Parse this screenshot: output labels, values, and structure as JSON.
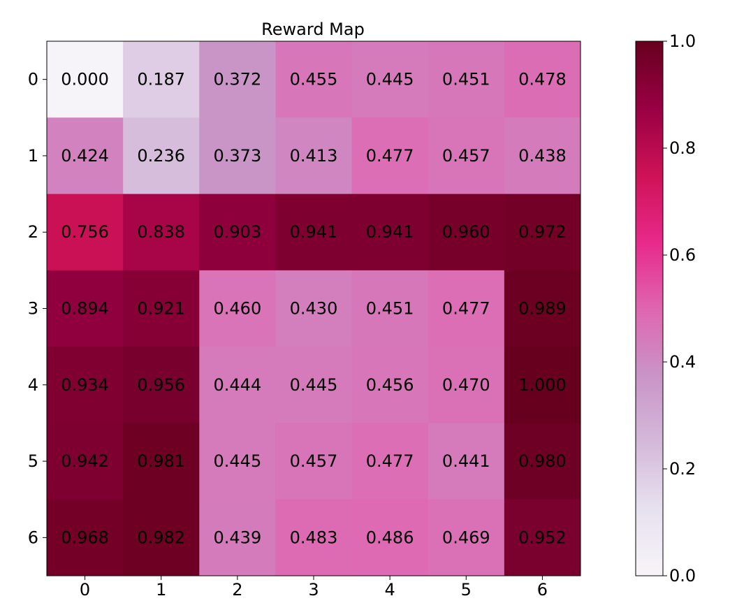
{
  "chart_data": {
    "type": "heatmap",
    "title": "Reward Map",
    "x_ticks": [
      "0",
      "1",
      "2",
      "3",
      "4",
      "5",
      "6"
    ],
    "y_ticks": [
      "0",
      "1",
      "2",
      "3",
      "4",
      "5",
      "6"
    ],
    "values": [
      [
        0.0,
        0.187,
        0.372,
        0.455,
        0.445,
        0.451,
        0.478
      ],
      [
        0.424,
        0.236,
        0.373,
        0.413,
        0.477,
        0.457,
        0.438
      ],
      [
        0.756,
        0.838,
        0.903,
        0.941,
        0.941,
        0.96,
        0.972
      ],
      [
        0.894,
        0.921,
        0.46,
        0.43,
        0.451,
        0.477,
        0.989
      ],
      [
        0.934,
        0.956,
        0.444,
        0.445,
        0.456,
        0.47,
        1.0
      ],
      [
        0.942,
        0.981,
        0.445,
        0.457,
        0.477,
        0.441,
        0.98
      ],
      [
        0.968,
        0.982,
        0.439,
        0.483,
        0.486,
        0.469,
        0.952
      ]
    ],
    "value_labels": [
      [
        "0.000",
        "0.187",
        "0.372",
        "0.455",
        "0.445",
        "0.451",
        "0.478"
      ],
      [
        "0.424",
        "0.236",
        "0.373",
        "0.413",
        "0.477",
        "0.457",
        "0.438"
      ],
      [
        "0.756",
        "0.838",
        "0.903",
        "0.941",
        "0.941",
        "0.960",
        "0.972"
      ],
      [
        "0.894",
        "0.921",
        "0.460",
        "0.430",
        "0.451",
        "0.477",
        "0.989"
      ],
      [
        "0.934",
        "0.956",
        "0.444",
        "0.445",
        "0.456",
        "0.470",
        "1.000"
      ],
      [
        "0.942",
        "0.981",
        "0.445",
        "0.457",
        "0.477",
        "0.441",
        "0.980"
      ],
      [
        "0.968",
        "0.982",
        "0.439",
        "0.483",
        "0.486",
        "0.469",
        "0.952"
      ]
    ],
    "colorbar": {
      "range": [
        0,
        1
      ],
      "ticks": [
        0.0,
        0.2,
        0.4,
        0.6,
        0.8,
        1.0
      ],
      "tick_labels": [
        "0.0",
        "0.2",
        "0.4",
        "0.6",
        "0.8",
        "1.0"
      ],
      "colormap": "PuRd",
      "stops": [
        "#f7f4f9",
        "#e7e1ef",
        "#d4b9da",
        "#c994c7",
        "#df65b0",
        "#e7298a",
        "#ce1256",
        "#980043",
        "#67001f"
      ]
    },
    "grid": false
  }
}
